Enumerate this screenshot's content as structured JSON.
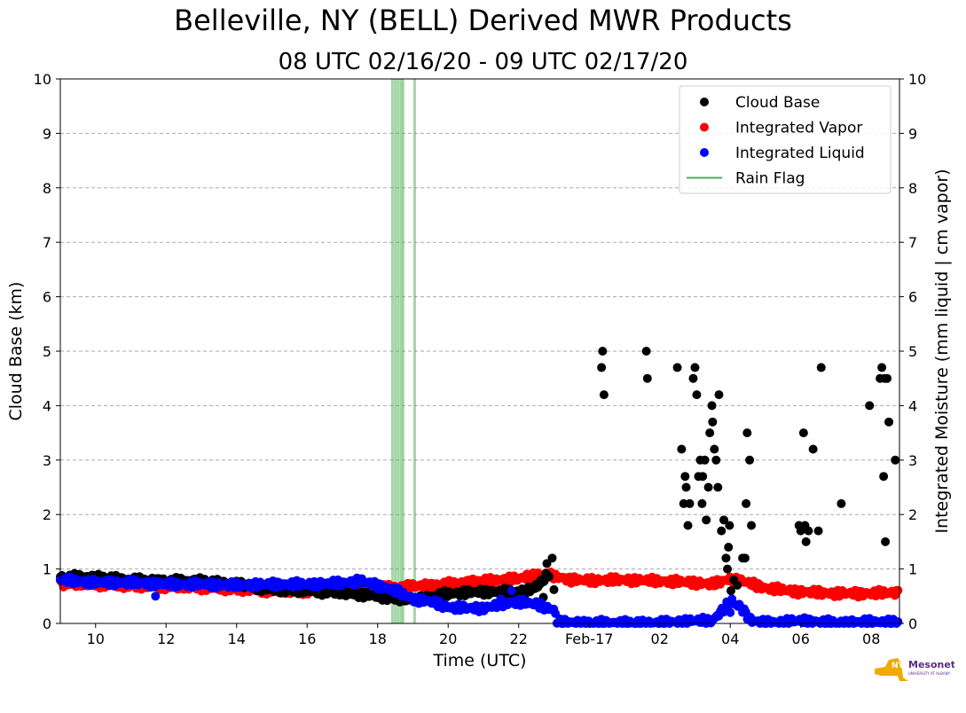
{
  "header": {
    "title": "Belleville, NY (BELL) Derived MWR Products",
    "subtitle": "08 UTC 02/16/20 - 09 UTC 02/17/20"
  },
  "logo": {
    "text": "NYS Mesonet",
    "subtext": "UNIVERSITY AT ALBANY",
    "color": "#5b2c83",
    "shape_color": "#f2a900"
  },
  "chart_data": {
    "type": "scatter",
    "title": "Belleville, NY (BELL) Derived MWR Products",
    "subtitle": "08 UTC 02/16/20 - 09 UTC 02/17/20",
    "xlabel": "Time (UTC)",
    "ylabel_left": "Cloud Base (km)",
    "ylabel_right": "Integrated Moisture (mm liquid | cm vapor)",
    "xlim_hours": [
      9.0,
      32.8
    ],
    "ylim": [
      0,
      10
    ],
    "yticks": [
      0,
      1,
      2,
      3,
      4,
      5,
      6,
      7,
      8,
      9,
      10
    ],
    "xticks": [
      {
        "h": 10,
        "label": "10"
      },
      {
        "h": 12,
        "label": "12"
      },
      {
        "h": 14,
        "label": "14"
      },
      {
        "h": 16,
        "label": "16"
      },
      {
        "h": 18,
        "label": "18"
      },
      {
        "h": 20,
        "label": "20"
      },
      {
        "h": 22,
        "label": "22"
      },
      {
        "h": 24,
        "label": "Feb-17"
      },
      {
        "h": 26,
        "label": "02"
      },
      {
        "h": 28,
        "label": "04"
      },
      {
        "h": 30,
        "label": "06"
      },
      {
        "h": 32,
        "label": "08"
      }
    ],
    "grid": "horizontal dashed",
    "legend_position": "top-right",
    "legend": [
      {
        "label": "Cloud Base",
        "kind": "dot",
        "color": "#000000"
      },
      {
        "label": "Integrated Vapor",
        "kind": "dot",
        "color": "#ff0000"
      },
      {
        "label": "Integrated Liquid",
        "kind": "dot",
        "color": "#0000ff"
      },
      {
        "label": "Rain Flag",
        "kind": "line",
        "color": "#4caf50"
      }
    ],
    "rain_flag_hours": [
      18.42,
      18.5,
      18.58,
      18.66,
      18.72,
      19.05
    ],
    "series": [
      {
        "name": "Integrated Vapor",
        "color": "#ff0000",
        "dense": true,
        "points": [
          [
            9.0,
            0.73
          ],
          [
            10.0,
            0.72
          ],
          [
            11.0,
            0.69
          ],
          [
            12.0,
            0.68
          ],
          [
            13.0,
            0.66
          ],
          [
            14.0,
            0.63
          ],
          [
            15.0,
            0.6
          ],
          [
            16.0,
            0.59
          ],
          [
            17.0,
            0.62
          ],
          [
            18.0,
            0.65
          ],
          [
            19.0,
            0.68
          ],
          [
            20.0,
            0.72
          ],
          [
            21.0,
            0.78
          ],
          [
            22.0,
            0.82
          ],
          [
            22.5,
            0.9
          ],
          [
            23.0,
            0.87
          ],
          [
            23.5,
            0.8
          ],
          [
            24.0,
            0.79
          ],
          [
            25.0,
            0.8
          ],
          [
            26.0,
            0.78
          ],
          [
            27.0,
            0.75
          ],
          [
            27.5,
            0.72
          ],
          [
            28.0,
            0.82
          ],
          [
            28.5,
            0.75
          ],
          [
            29.0,
            0.65
          ],
          [
            30.0,
            0.58
          ],
          [
            31.0,
            0.55
          ],
          [
            32.0,
            0.55
          ],
          [
            32.8,
            0.57
          ]
        ]
      },
      {
        "name": "Cloud Base",
        "color": "#000000",
        "dense": true,
        "points": [
          [
            9.0,
            0.85
          ],
          [
            10.0,
            0.85
          ],
          [
            11.0,
            0.8
          ],
          [
            12.0,
            0.78
          ],
          [
            13.0,
            0.78
          ],
          [
            14.0,
            0.72
          ],
          [
            15.0,
            0.62
          ],
          [
            16.0,
            0.6
          ],
          [
            17.0,
            0.56
          ],
          [
            18.0,
            0.5
          ],
          [
            18.5,
            0.45
          ],
          [
            19.0,
            0.45
          ],
          [
            19.5,
            0.48
          ],
          [
            20.0,
            0.55
          ],
          [
            21.0,
            0.58
          ],
          [
            22.0,
            0.58
          ],
          [
            22.5,
            0.65
          ],
          [
            22.9,
            0.95
          ]
        ],
        "scattered": [
          [
            22.8,
            1.1
          ],
          [
            22.95,
            1.2
          ],
          [
            22.5,
            0.72
          ],
          [
            23.0,
            0.62
          ],
          [
            22.7,
            0.48
          ],
          [
            24.35,
            4.7
          ],
          [
            24.38,
            5.0
          ],
          [
            24.42,
            4.2
          ],
          [
            25.62,
            5.0
          ],
          [
            25.65,
            4.5
          ],
          [
            26.5,
            4.7
          ],
          [
            26.62,
            3.2
          ],
          [
            26.68,
            2.2
          ],
          [
            26.72,
            2.7
          ],
          [
            26.75,
            2.5
          ],
          [
            26.8,
            1.8
          ],
          [
            26.85,
            2.2
          ],
          [
            26.95,
            4.5
          ],
          [
            27.0,
            4.7
          ],
          [
            27.05,
            4.2
          ],
          [
            27.1,
            2.7
          ],
          [
            27.15,
            3.0
          ],
          [
            27.2,
            2.2
          ],
          [
            27.22,
            2.7
          ],
          [
            27.28,
            3.0
          ],
          [
            27.32,
            1.9
          ],
          [
            27.38,
            2.5
          ],
          [
            27.42,
            3.5
          ],
          [
            27.48,
            4.0
          ],
          [
            27.5,
            3.7
          ],
          [
            27.55,
            3.2
          ],
          [
            27.6,
            3.0
          ],
          [
            27.65,
            2.5
          ],
          [
            27.68,
            4.2
          ],
          [
            27.75,
            1.7
          ],
          [
            27.82,
            1.9
          ],
          [
            27.88,
            1.2
          ],
          [
            27.92,
            1.0
          ],
          [
            27.95,
            1.4
          ],
          [
            27.98,
            1.8
          ],
          [
            28.02,
            0.6
          ],
          [
            28.1,
            0.8
          ],
          [
            28.2,
            0.7
          ],
          [
            28.35,
            1.2
          ],
          [
            28.42,
            1.2
          ],
          [
            28.45,
            2.2
          ],
          [
            28.48,
            3.5
          ],
          [
            28.55,
            3.0
          ],
          [
            28.6,
            1.8
          ],
          [
            29.95,
            1.8
          ],
          [
            30.0,
            1.7
          ],
          [
            30.08,
            3.5
          ],
          [
            30.12,
            1.8
          ],
          [
            30.15,
            1.5
          ],
          [
            30.22,
            1.7
          ],
          [
            30.35,
            3.2
          ],
          [
            30.5,
            1.7
          ],
          [
            30.58,
            4.7
          ],
          [
            31.15,
            2.2
          ],
          [
            31.95,
            4.0
          ],
          [
            32.25,
            4.5
          ],
          [
            32.3,
            4.7
          ],
          [
            32.35,
            2.7
          ],
          [
            32.38,
            4.5
          ],
          [
            32.4,
            1.5
          ],
          [
            32.45,
            4.5
          ],
          [
            32.5,
            3.7
          ],
          [
            32.68,
            3.0
          ]
        ]
      },
      {
        "name": "Integrated Liquid",
        "color": "#0000ff",
        "dense": true,
        "points": [
          [
            9.0,
            0.8
          ],
          [
            10.0,
            0.75
          ],
          [
            11.0,
            0.75
          ],
          [
            12.0,
            0.72
          ],
          [
            13.0,
            0.72
          ],
          [
            14.0,
            0.7
          ],
          [
            15.0,
            0.72
          ],
          [
            16.0,
            0.72
          ],
          [
            17.0,
            0.74
          ],
          [
            17.5,
            0.78
          ],
          [
            18.0,
            0.7
          ],
          [
            18.5,
            0.6
          ],
          [
            19.0,
            0.45
          ],
          [
            19.5,
            0.4
          ],
          [
            20.0,
            0.3
          ],
          [
            20.5,
            0.28
          ],
          [
            21.0,
            0.28
          ],
          [
            21.5,
            0.35
          ],
          [
            22.0,
            0.4
          ],
          [
            22.5,
            0.35
          ],
          [
            23.0,
            0.25
          ],
          [
            23.1,
            0.02
          ],
          [
            24.0,
            0.01
          ],
          [
            25.0,
            0.01
          ],
          [
            26.0,
            0.01
          ],
          [
            27.0,
            0.05
          ],
          [
            27.5,
            0.05
          ],
          [
            28.0,
            0.4
          ],
          [
            28.3,
            0.3
          ],
          [
            28.6,
            0.05
          ],
          [
            29.0,
            0.01
          ],
          [
            30.0,
            0.05
          ],
          [
            31.0,
            0.01
          ],
          [
            32.0,
            0.03
          ],
          [
            32.8,
            0.02
          ]
        ],
        "scattered": [
          [
            11.7,
            0.5
          ],
          [
            21.5,
            0.45
          ],
          [
            21.8,
            0.6
          ],
          [
            28.0,
            0.2
          ],
          [
            28.05,
            0.45
          ]
        ]
      }
    ]
  }
}
